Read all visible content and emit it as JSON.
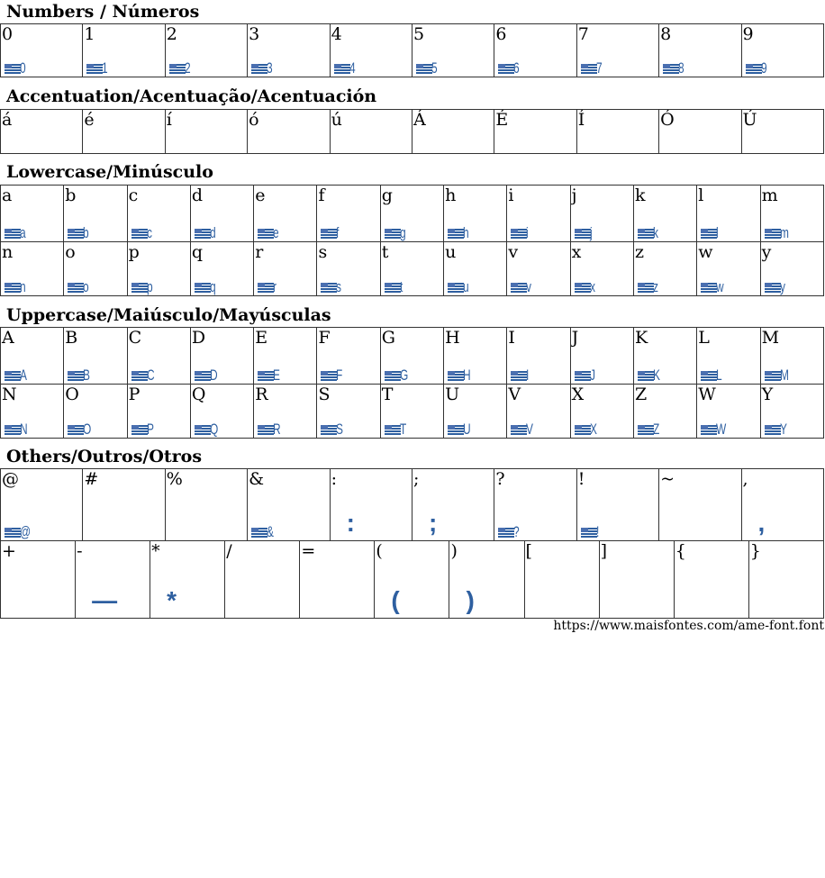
{
  "sections": [
    {
      "title": "Numbers / Números",
      "rows": [
        [
          {
            "label": "0",
            "flag": true,
            "glyph": "0"
          },
          {
            "label": "1",
            "flag": true,
            "glyph": "1"
          },
          {
            "label": "2",
            "flag": true,
            "glyph": "2"
          },
          {
            "label": "3",
            "flag": true,
            "glyph": "3"
          },
          {
            "label": "4",
            "flag": true,
            "glyph": "4"
          },
          {
            "label": "5",
            "flag": true,
            "glyph": "5"
          },
          {
            "label": "6",
            "flag": true,
            "glyph": "6"
          },
          {
            "label": "7",
            "flag": true,
            "glyph": "7"
          },
          {
            "label": "8",
            "flag": true,
            "glyph": "8"
          },
          {
            "label": "9",
            "flag": true,
            "glyph": "9"
          }
        ]
      ]
    },
    {
      "title": "Accentuation/Acentuação/Acentuación",
      "rows": [
        [
          {
            "label": "á"
          },
          {
            "label": "é"
          },
          {
            "label": "í"
          },
          {
            "label": "ó"
          },
          {
            "label": "ú"
          },
          {
            "label": "Á"
          },
          {
            "label": "É"
          },
          {
            "label": "Í"
          },
          {
            "label": "Ó"
          },
          {
            "label": "Ú"
          }
        ]
      ]
    },
    {
      "title": "Lowercase/Minúsculo",
      "rows": [
        [
          {
            "label": "a",
            "flag": true,
            "glyph": "a"
          },
          {
            "label": "b",
            "flag": true,
            "glyph": "b"
          },
          {
            "label": "c",
            "flag": true,
            "glyph": "c"
          },
          {
            "label": "d",
            "flag": true,
            "glyph": "d"
          },
          {
            "label": "e",
            "flag": true,
            "glyph": "e"
          },
          {
            "label": "f",
            "flag": true,
            "glyph": "f"
          },
          {
            "label": "g",
            "flag": true,
            "glyph": "g"
          },
          {
            "label": "h",
            "flag": true,
            "glyph": "h"
          },
          {
            "label": "i",
            "flag": true,
            "glyph": "i"
          },
          {
            "label": "j",
            "flag": true,
            "glyph": "j"
          },
          {
            "label": "k",
            "flag": true,
            "glyph": "k"
          },
          {
            "label": "l",
            "flag": true,
            "glyph": "l"
          },
          {
            "label": "m",
            "flag": true,
            "glyph": "m"
          }
        ],
        [
          {
            "label": "n",
            "flag": true,
            "glyph": "n"
          },
          {
            "label": "o",
            "flag": true,
            "glyph": "o"
          },
          {
            "label": "p",
            "flag": true,
            "glyph": "p"
          },
          {
            "label": "q",
            "flag": true,
            "glyph": "q"
          },
          {
            "label": "r",
            "flag": true,
            "glyph": "r"
          },
          {
            "label": "s",
            "flag": true,
            "glyph": "s"
          },
          {
            "label": "t",
            "flag": true,
            "glyph": "t"
          },
          {
            "label": "u",
            "flag": true,
            "glyph": "u"
          },
          {
            "label": "v",
            "flag": true,
            "glyph": "v"
          },
          {
            "label": "x",
            "flag": true,
            "glyph": "x"
          },
          {
            "label": "z",
            "flag": true,
            "glyph": "z"
          },
          {
            "label": "w",
            "flag": true,
            "glyph": "w"
          },
          {
            "label": "y",
            "flag": true,
            "glyph": "y"
          }
        ]
      ]
    },
    {
      "title": "Uppercase/Maiúsculo/Mayúsculas",
      "rows": [
        [
          {
            "label": "A",
            "flag": true,
            "glyph": "A"
          },
          {
            "label": "B",
            "flag": true,
            "glyph": "B"
          },
          {
            "label": "C",
            "flag": true,
            "glyph": "C"
          },
          {
            "label": "D",
            "flag": true,
            "glyph": "D"
          },
          {
            "label": "E",
            "flag": true,
            "glyph": "E"
          },
          {
            "label": "F",
            "flag": true,
            "glyph": "F"
          },
          {
            "label": "G",
            "flag": true,
            "glyph": "G"
          },
          {
            "label": "H",
            "flag": true,
            "glyph": "H"
          },
          {
            "label": "I",
            "flag": true,
            "glyph": "I"
          },
          {
            "label": "J",
            "flag": true,
            "glyph": "J"
          },
          {
            "label": "K",
            "flag": true,
            "glyph": "K"
          },
          {
            "label": "L",
            "flag": true,
            "glyph": "L"
          },
          {
            "label": "M",
            "flag": true,
            "glyph": "M"
          }
        ],
        [
          {
            "label": "N",
            "flag": true,
            "glyph": "N"
          },
          {
            "label": "O",
            "flag": true,
            "glyph": "O"
          },
          {
            "label": "P",
            "flag": true,
            "glyph": "P"
          },
          {
            "label": "Q",
            "flag": true,
            "glyph": "Q"
          },
          {
            "label": "R",
            "flag": true,
            "glyph": "R"
          },
          {
            "label": "S",
            "flag": true,
            "glyph": "S"
          },
          {
            "label": "T",
            "flag": true,
            "glyph": "T"
          },
          {
            "label": "U",
            "flag": true,
            "glyph": "U"
          },
          {
            "label": "V",
            "flag": true,
            "glyph": "V"
          },
          {
            "label": "X",
            "flag": true,
            "glyph": "X"
          },
          {
            "label": "Z",
            "flag": true,
            "glyph": "Z"
          },
          {
            "label": "W",
            "flag": true,
            "glyph": "W"
          },
          {
            "label": "Y",
            "flag": true,
            "glyph": "Y"
          }
        ]
      ]
    },
    {
      "title": "Others/Outros/Otros",
      "rows": [
        [
          {
            "label": "@",
            "flag": true,
            "glyph": "@"
          },
          {
            "label": "#"
          },
          {
            "label": "%"
          },
          {
            "label": "&",
            "flag": true,
            "glyph": "&"
          },
          {
            "label": ":",
            "glyph": ":"
          },
          {
            "label": ";",
            "glyph": ";"
          },
          {
            "label": "?",
            "flag": true,
            "glyph": "?"
          },
          {
            "label": "!",
            "flag": true,
            "glyph": "!"
          },
          {
            "label": "~"
          },
          {
            "label": ",",
            "glyph": ","
          }
        ],
        [
          {
            "label": "+"
          },
          {
            "label": "-",
            "glyph": "—"
          },
          {
            "label": "*",
            "glyph": "*"
          },
          {
            "label": "/"
          },
          {
            "label": "="
          },
          {
            "label": "(",
            "glyph": "("
          },
          {
            "label": ")",
            "glyph": ")"
          },
          {
            "label": "["
          },
          {
            "label": "]"
          },
          {
            "label": "{"
          },
          {
            "label": "}"
          }
        ]
      ]
    }
  ],
  "footer": {
    "url": "https://www.maisfontes.com/ame-font.font"
  },
  "colors": {
    "glyph": "#2e5fa0",
    "border": "#333333"
  }
}
